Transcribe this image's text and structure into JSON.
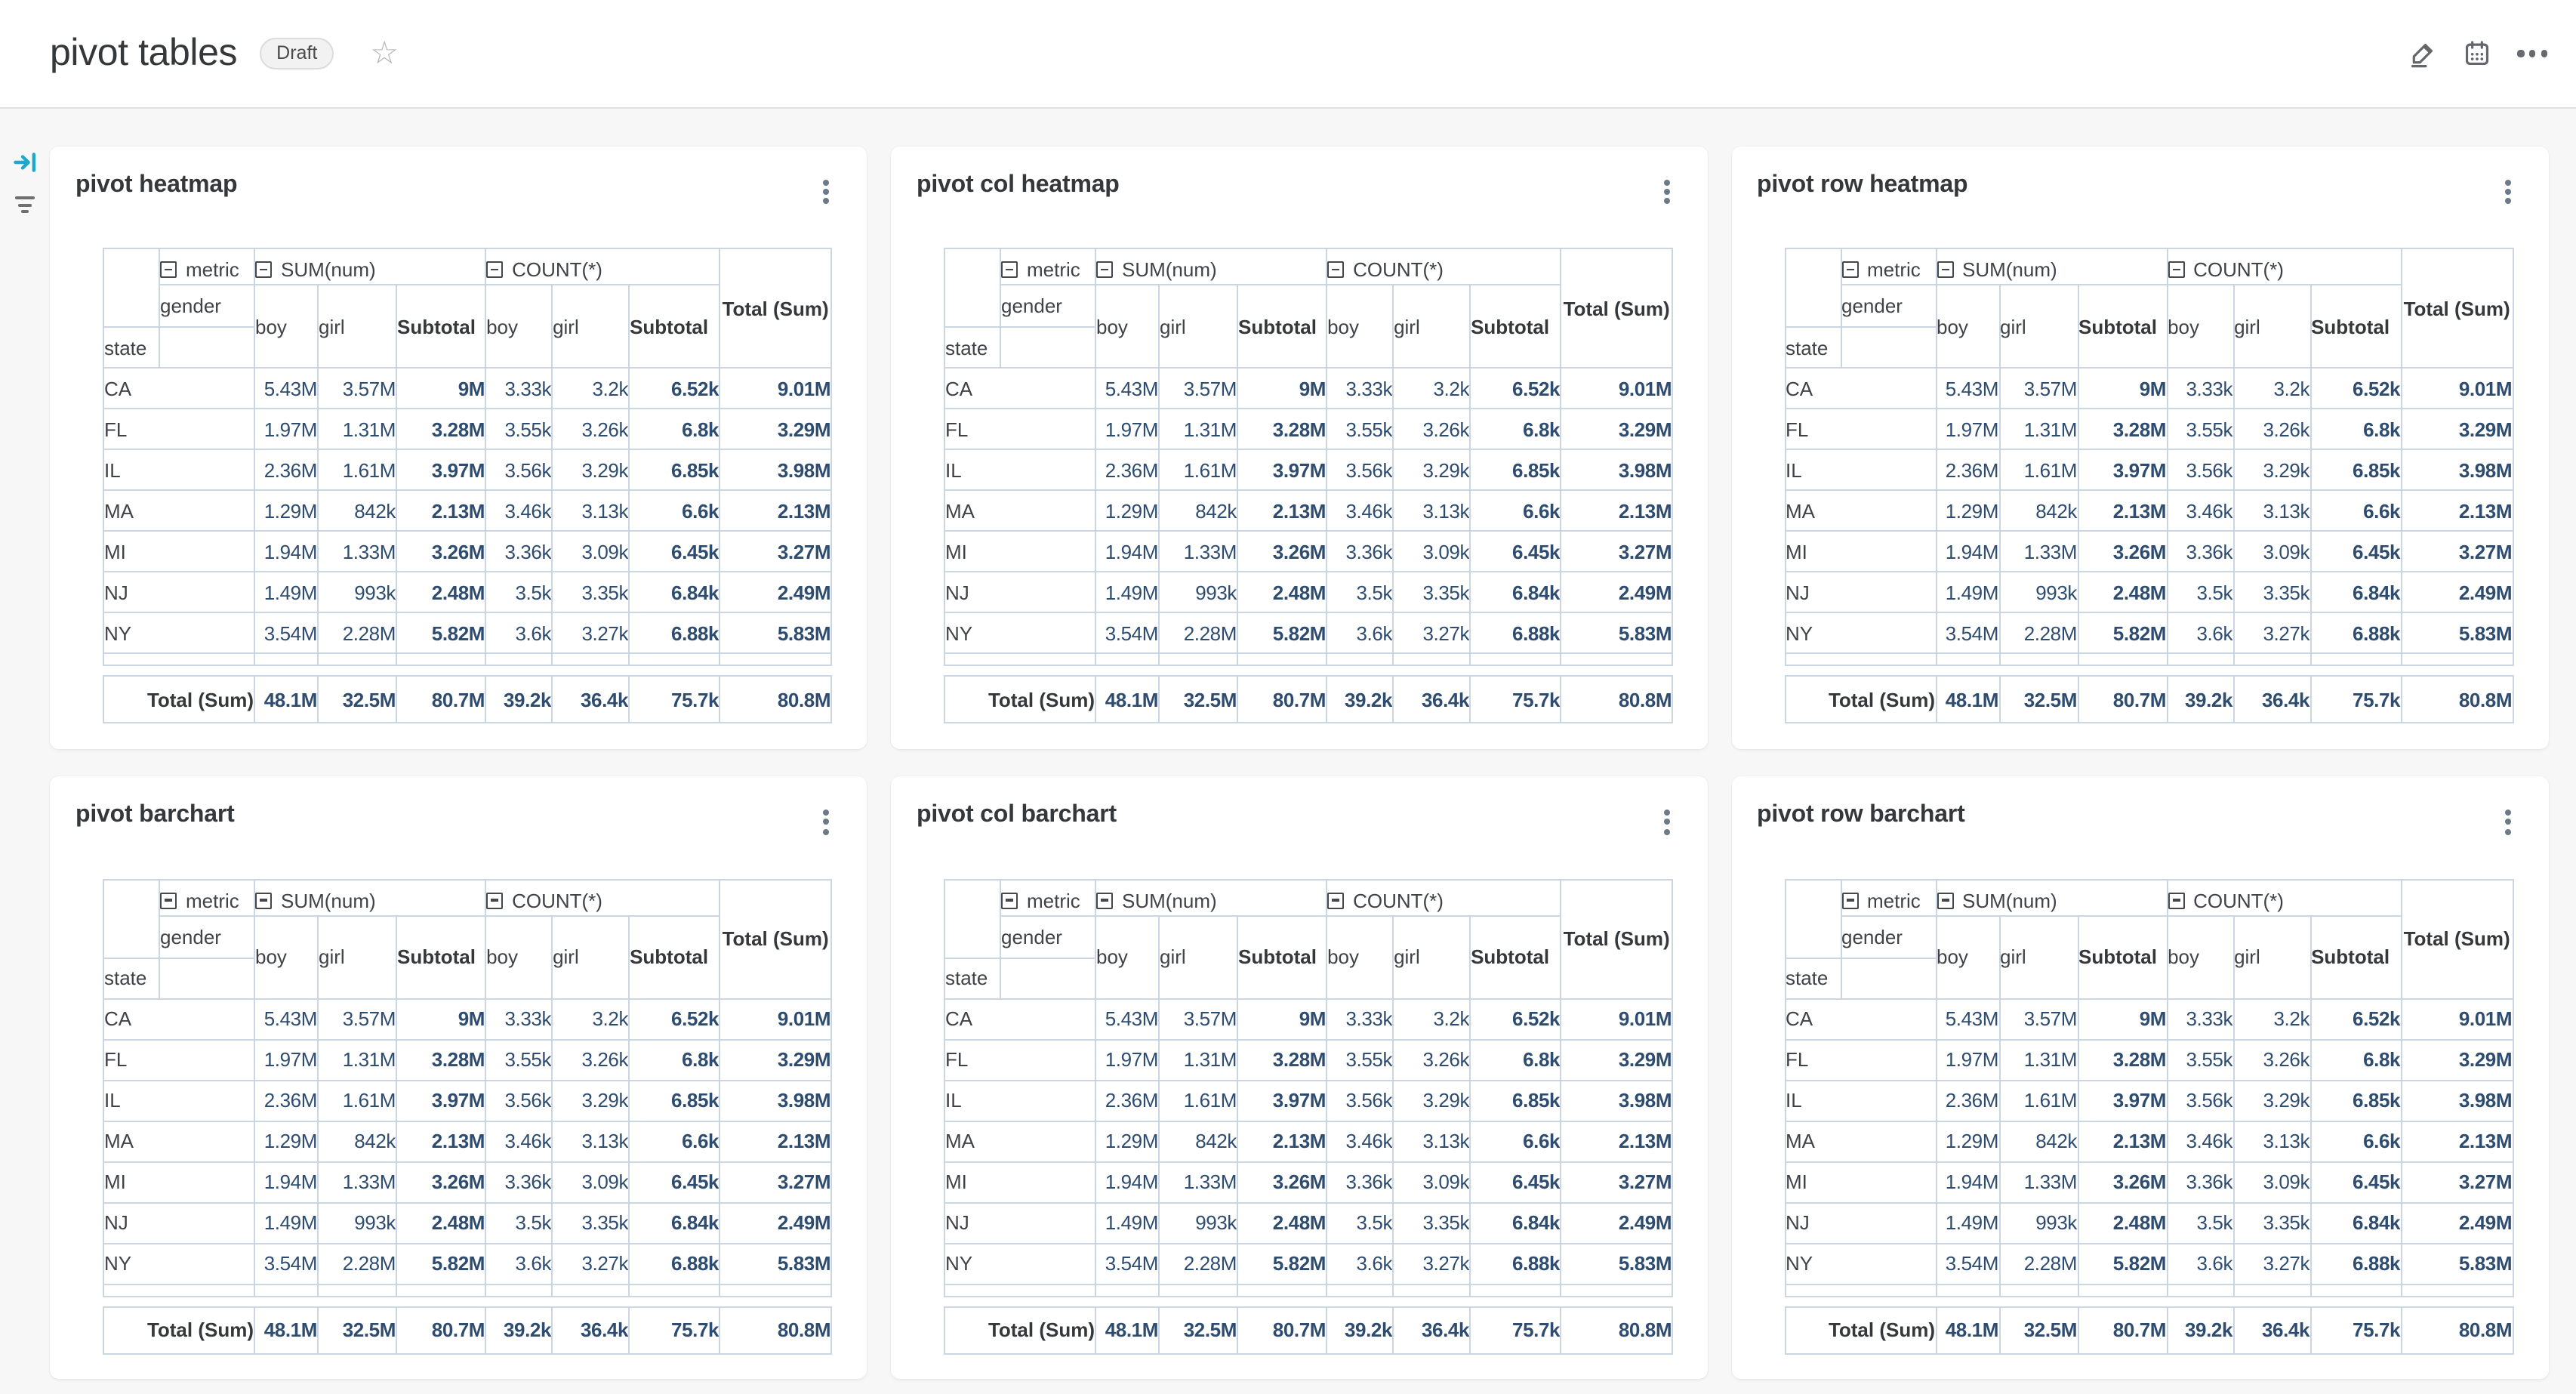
{
  "page": {
    "title": "pivot tables",
    "status_badge": "Draft"
  },
  "colors": {
    "accent_cyan": "#1fa8c9",
    "value_navy": "#2e4c70",
    "table_border": "#ccd6e3",
    "body_background": "#f7f7f7"
  },
  "cards": [
    {
      "title": "pivot heatmap"
    },
    {
      "title": "pivot col heatmap"
    },
    {
      "title": "pivot row heatmap"
    },
    {
      "title": "pivot barchart"
    },
    {
      "title": "pivot col barchart"
    },
    {
      "title": "pivot row barchart"
    }
  ],
  "pivot": {
    "corner": {
      "metric": "metric",
      "gender": "gender",
      "state": "state"
    },
    "groups": [
      {
        "label": "SUM(num)",
        "columns": [
          "boy",
          "girl",
          "Subtotal"
        ]
      },
      {
        "label": "COUNT(*)",
        "columns": [
          "boy",
          "girl",
          "Subtotal"
        ]
      }
    ],
    "total_column_label": "Total (Sum)",
    "rows": [
      {
        "state": "CA",
        "values": [
          "5.43M",
          "3.57M",
          "9M",
          "3.33k",
          "3.2k",
          "6.52k",
          "9.01M"
        ]
      },
      {
        "state": "FL",
        "values": [
          "1.97M",
          "1.31M",
          "3.28M",
          "3.55k",
          "3.26k",
          "6.8k",
          "3.29M"
        ]
      },
      {
        "state": "IL",
        "values": [
          "2.36M",
          "1.61M",
          "3.97M",
          "3.56k",
          "3.29k",
          "6.85k",
          "3.98M"
        ]
      },
      {
        "state": "MA",
        "values": [
          "1.29M",
          "842k",
          "2.13M",
          "3.46k",
          "3.13k",
          "6.6k",
          "2.13M"
        ]
      },
      {
        "state": "MI",
        "values": [
          "1.94M",
          "1.33M",
          "3.26M",
          "3.36k",
          "3.09k",
          "6.45k",
          "3.27M"
        ]
      },
      {
        "state": "NJ",
        "values": [
          "1.49M",
          "993k",
          "2.48M",
          "3.5k",
          "3.35k",
          "6.84k",
          "2.49M"
        ]
      },
      {
        "state": "NY",
        "values": [
          "3.54M",
          "2.28M",
          "5.82M",
          "3.6k",
          "3.27k",
          "6.88k",
          "5.83M"
        ]
      }
    ],
    "total_row": {
      "label": "Total (Sum)",
      "values": [
        "48.1M",
        "32.5M",
        "80.7M",
        "39.2k",
        "36.4k",
        "75.7k",
        "80.8M"
      ]
    }
  }
}
